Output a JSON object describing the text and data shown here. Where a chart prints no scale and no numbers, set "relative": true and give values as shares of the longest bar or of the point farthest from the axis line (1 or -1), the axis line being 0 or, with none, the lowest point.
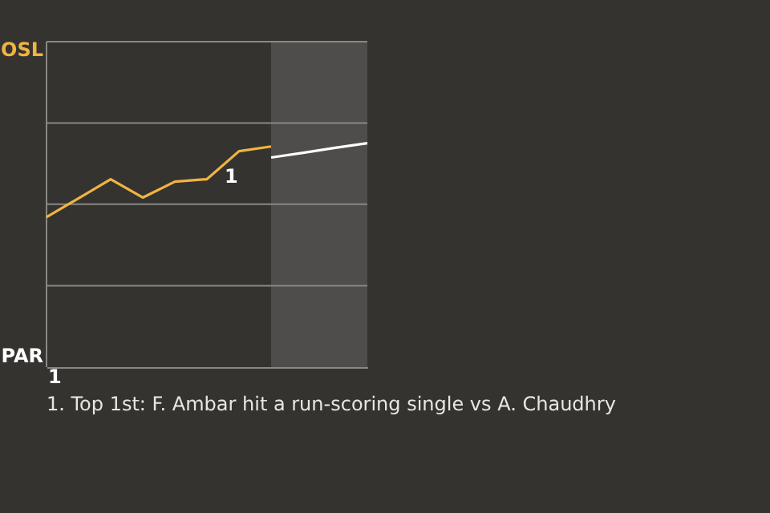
{
  "chart_data": {
    "type": "line",
    "relative": true,
    "categories": [
      null,
      null,
      null,
      null,
      null,
      null,
      null,
      null,
      null,
      null,
      null
    ],
    "series": [
      {
        "color": "#f0b443",
        "values": [
          0.67,
          0.754,
          0.839,
          0.757,
          0.828,
          0.839,
          0.964,
          0.985,
          null,
          null,
          null
        ]
      },
      {
        "color": "#ffffff",
        "values": [
          null,
          null,
          null,
          null,
          null,
          null,
          null,
          0.936,
          0.957,
          0.979,
          1
        ]
      }
    ],
    "marker": "none",
    "line_style": "solid",
    "ref_lines": [
      {
        "axis": "y",
        "value": 0.363,
        "color": "#8a8884"
      },
      {
        "axis": "y",
        "value": 0.727,
        "color": "#8a8884"
      },
      {
        "axis": "y",
        "value": 1.09,
        "color": "#8a8884"
      },
      {
        "axis": "y",
        "value": 1.453,
        "color": "#8a8884"
      }
    ],
    "annotations": [
      "OSL",
      "PAR",
      "1",
      "1",
      "1. Top 1st: F. Ambar hit a run-scoring single vs A. Chaudhry"
    ]
  }
}
